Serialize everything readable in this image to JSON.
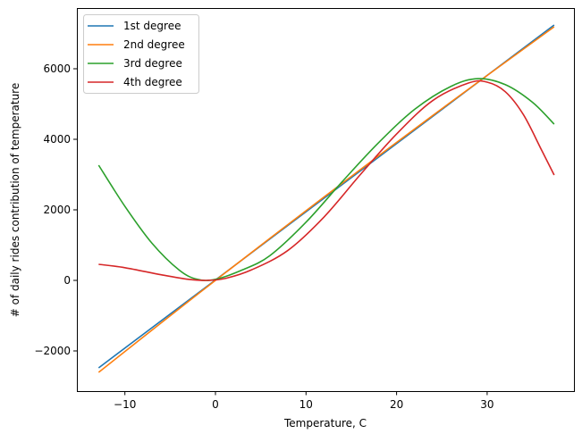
{
  "chart_data": {
    "type": "line",
    "title": "",
    "xlabel": "Temperature, C",
    "ylabel": "# of daily rides contribution of temperature",
    "xlim": [
      -15.4,
      40
    ],
    "ylim": [
      -3100,
      7700
    ],
    "xticks": [
      -10,
      0,
      10,
      20,
      30
    ],
    "xtick_labels": [
      "−10",
      "0",
      "10",
      "20",
      "30"
    ],
    "yticks": [
      -2000,
      0,
      2000,
      4000,
      6000
    ],
    "ytick_labels": [
      "−2000",
      "0",
      "2000",
      "4000",
      "6000"
    ],
    "grid": false,
    "legend_position": "upper left",
    "series": [
      {
        "name": "1st degree",
        "color": "#1f77b4",
        "x": [
          -12.9,
          37.4
        ],
        "y": [
          -2480,
          7240
        ]
      },
      {
        "name": "2nd degree",
        "color": "#ff7f0e",
        "x": [
          -12.9,
          -6,
          0,
          6,
          12,
          18,
          24,
          30,
          37.4
        ],
        "y": [
          -2608,
          -1205,
          0,
          1190,
          2366,
          3528,
          4676,
          5810,
          7190
        ]
      },
      {
        "name": "3rd degree",
        "color": "#2ca02c",
        "x": [
          -12.9,
          -10,
          -7,
          -4,
          -2,
          0,
          3,
          6,
          10,
          14,
          18,
          22,
          26,
          29,
          32,
          35,
          37.4
        ],
        "y": [
          3266,
          2100,
          1050,
          290,
          30,
          30,
          300,
          700,
          1650,
          2800,
          3900,
          4850,
          5500,
          5720,
          5550,
          5050,
          4430
        ]
      },
      {
        "name": "4th degree",
        "color": "#d62728",
        "x": [
          -12.9,
          -10,
          -6,
          -3,
          -1,
          1,
          4,
          8,
          12,
          16,
          20,
          24,
          28,
          30,
          32,
          34,
          36,
          37.4
        ],
        "y": [
          456,
          360,
          160,
          30,
          0,
          50,
          300,
          850,
          1800,
          3000,
          4150,
          5100,
          5600,
          5620,
          5350,
          4700,
          3700,
          2987
        ]
      }
    ]
  }
}
